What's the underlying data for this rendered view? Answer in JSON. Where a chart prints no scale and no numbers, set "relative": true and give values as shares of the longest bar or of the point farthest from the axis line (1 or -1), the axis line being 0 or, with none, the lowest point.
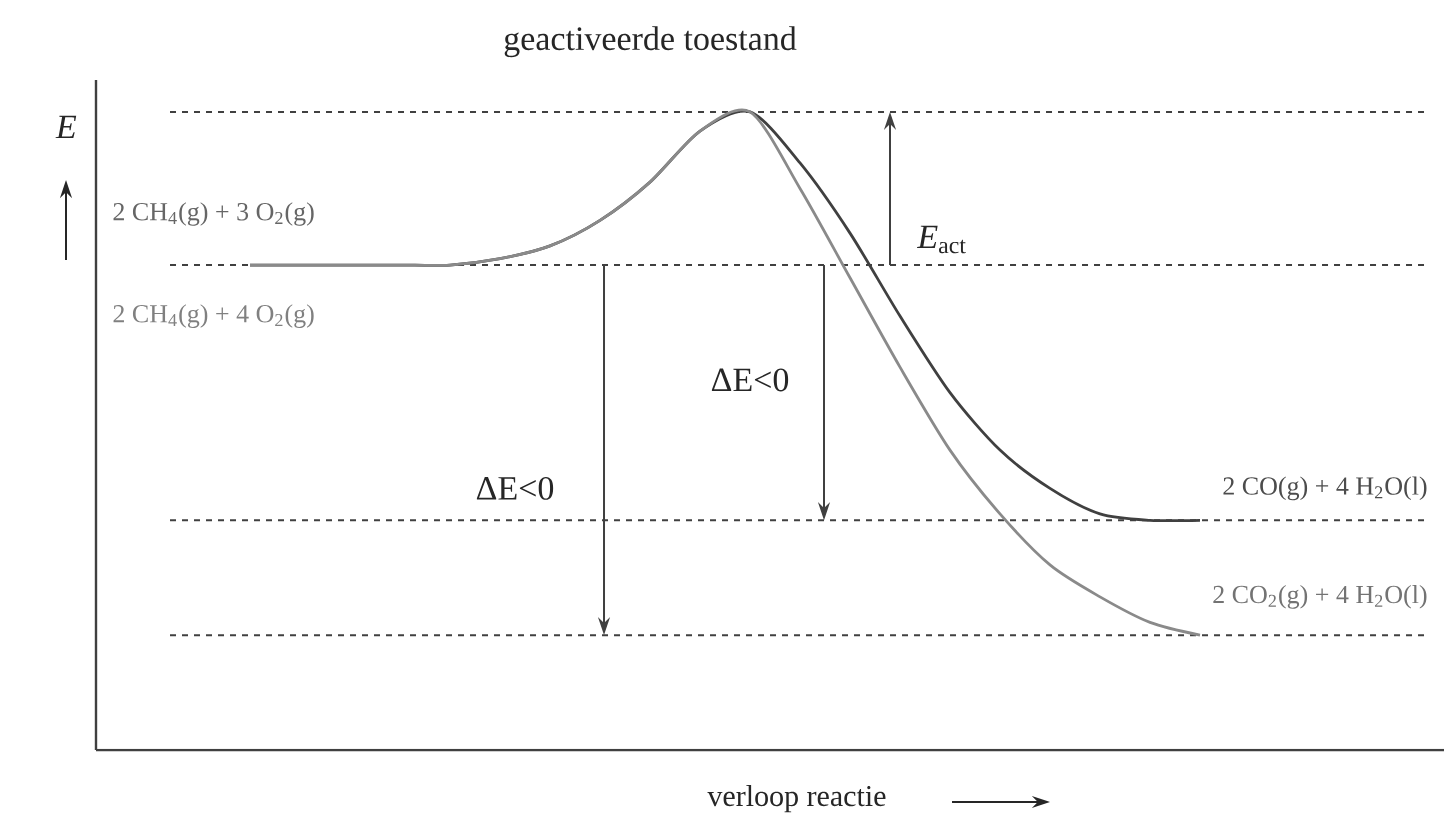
{
  "chart_data": {
    "type": "line",
    "relative": true,
    "xlabel": "verloop reactie",
    "ylabel": "E",
    "categories": [
      null,
      null,
      null,
      null,
      null,
      null,
      null,
      null,
      null,
      null,
      null,
      null,
      null,
      null,
      null,
      null,
      null,
      null,
      null,
      null
    ],
    "series": [
      {
        "color": "#404040",
        "values": [
          0.76,
          0.76,
          0.76,
          0.76,
          0.76,
          0.77,
          0.79,
          0.83,
          0.89,
          0.97,
          1.0,
          0.92,
          0.81,
          0.68,
          0.56,
          0.47,
          0.41,
          0.37,
          0.36,
          0.36
        ]
      },
      {
        "color": "#8a8a8a",
        "values": [
          0.76,
          0.76,
          0.76,
          0.76,
          0.76,
          0.77,
          0.79,
          0.83,
          0.89,
          0.97,
          1.0,
          0.88,
          0.74,
          0.6,
          0.47,
          0.37,
          0.29,
          0.24,
          0.2,
          0.18
        ]
      }
    ],
    "ref_lines": [
      {
        "axis": "y",
        "value": 1.0,
        "color": "#404040",
        "line_style": "dashed"
      },
      {
        "axis": "y",
        "value": 0.76,
        "color": "#404040",
        "line_style": "dashed"
      },
      {
        "axis": "y",
        "value": 0.36,
        "color": "#404040",
        "line_style": "dashed"
      },
      {
        "axis": "y",
        "value": 0.18,
        "color": "#404040",
        "line_style": "dashed"
      }
    ],
    "annotations": [
      "geactiveerde toestand",
      "2 CH$_{4}$(g) + 3 O$_{2}$(g)",
      "2 CH$_{4}$(g) + 4 O$_{2}$(g)",
      "*E*$_{act}$",
      "ΔE<0",
      "ΔE<0",
      "2 CO(g) + 4 H$_{2}$O(l)",
      "2 CO$_{2}$(g) + 4 H$_{2}$O(l)"
    ],
    "marker": "none",
    "line_style": "solid"
  }
}
